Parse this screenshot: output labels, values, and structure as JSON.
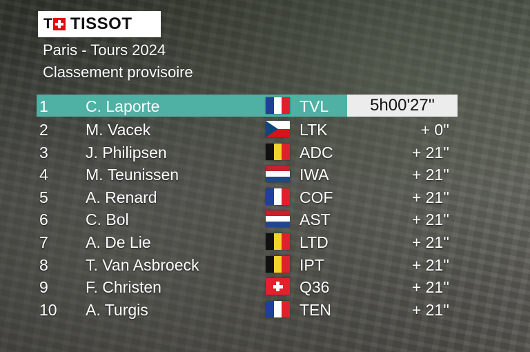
{
  "brand": {
    "logo_text": "TISSOT"
  },
  "race": {
    "title": "Paris - Tours 2024",
    "subtitle": "Classement provisoire"
  },
  "standings": [
    {
      "pos": "1",
      "name": "C. Laporte",
      "flag": "fr",
      "team": "TVL",
      "time": "5h00'27''"
    },
    {
      "pos": "2",
      "name": "M. Vacek",
      "flag": "cz",
      "team": "LTK",
      "time": "+ 0''"
    },
    {
      "pos": "3",
      "name": "J. Philipsen",
      "flag": "be",
      "team": "ADC",
      "time": "+ 21''"
    },
    {
      "pos": "4",
      "name": "M. Teunissen",
      "flag": "nl",
      "team": "IWA",
      "time": "+ 21''"
    },
    {
      "pos": "5",
      "name": "A. Renard",
      "flag": "fr",
      "team": "COF",
      "time": "+ 21''"
    },
    {
      "pos": "6",
      "name": "C. Bol",
      "flag": "nl",
      "team": "AST",
      "time": "+ 21''"
    },
    {
      "pos": "7",
      "name": "A. De Lie",
      "flag": "be",
      "team": "LTD",
      "time": "+ 21''"
    },
    {
      "pos": "8",
      "name": "T. Van Asbroeck",
      "flag": "be",
      "team": "IPT",
      "time": "+ 21''"
    },
    {
      "pos": "9",
      "name": "F. Christen",
      "flag": "ch",
      "team": "Q36",
      "time": "+ 21''"
    },
    {
      "pos": "10",
      "name": "A. Turgis",
      "flag": "fr",
      "team": "TEN",
      "time": "+ 21''"
    }
  ],
  "colors": {
    "leader_bar": "#4fb0a4",
    "leader_time_box": "#ececec",
    "logo_cross": "#e30613"
  },
  "icons": {
    "flag_fr": "france-flag-icon",
    "flag_cz": "czech-flag-icon",
    "flag_be": "belgium-flag-icon",
    "flag_nl": "netherlands-flag-icon",
    "flag_ch": "switzerland-flag-icon"
  }
}
